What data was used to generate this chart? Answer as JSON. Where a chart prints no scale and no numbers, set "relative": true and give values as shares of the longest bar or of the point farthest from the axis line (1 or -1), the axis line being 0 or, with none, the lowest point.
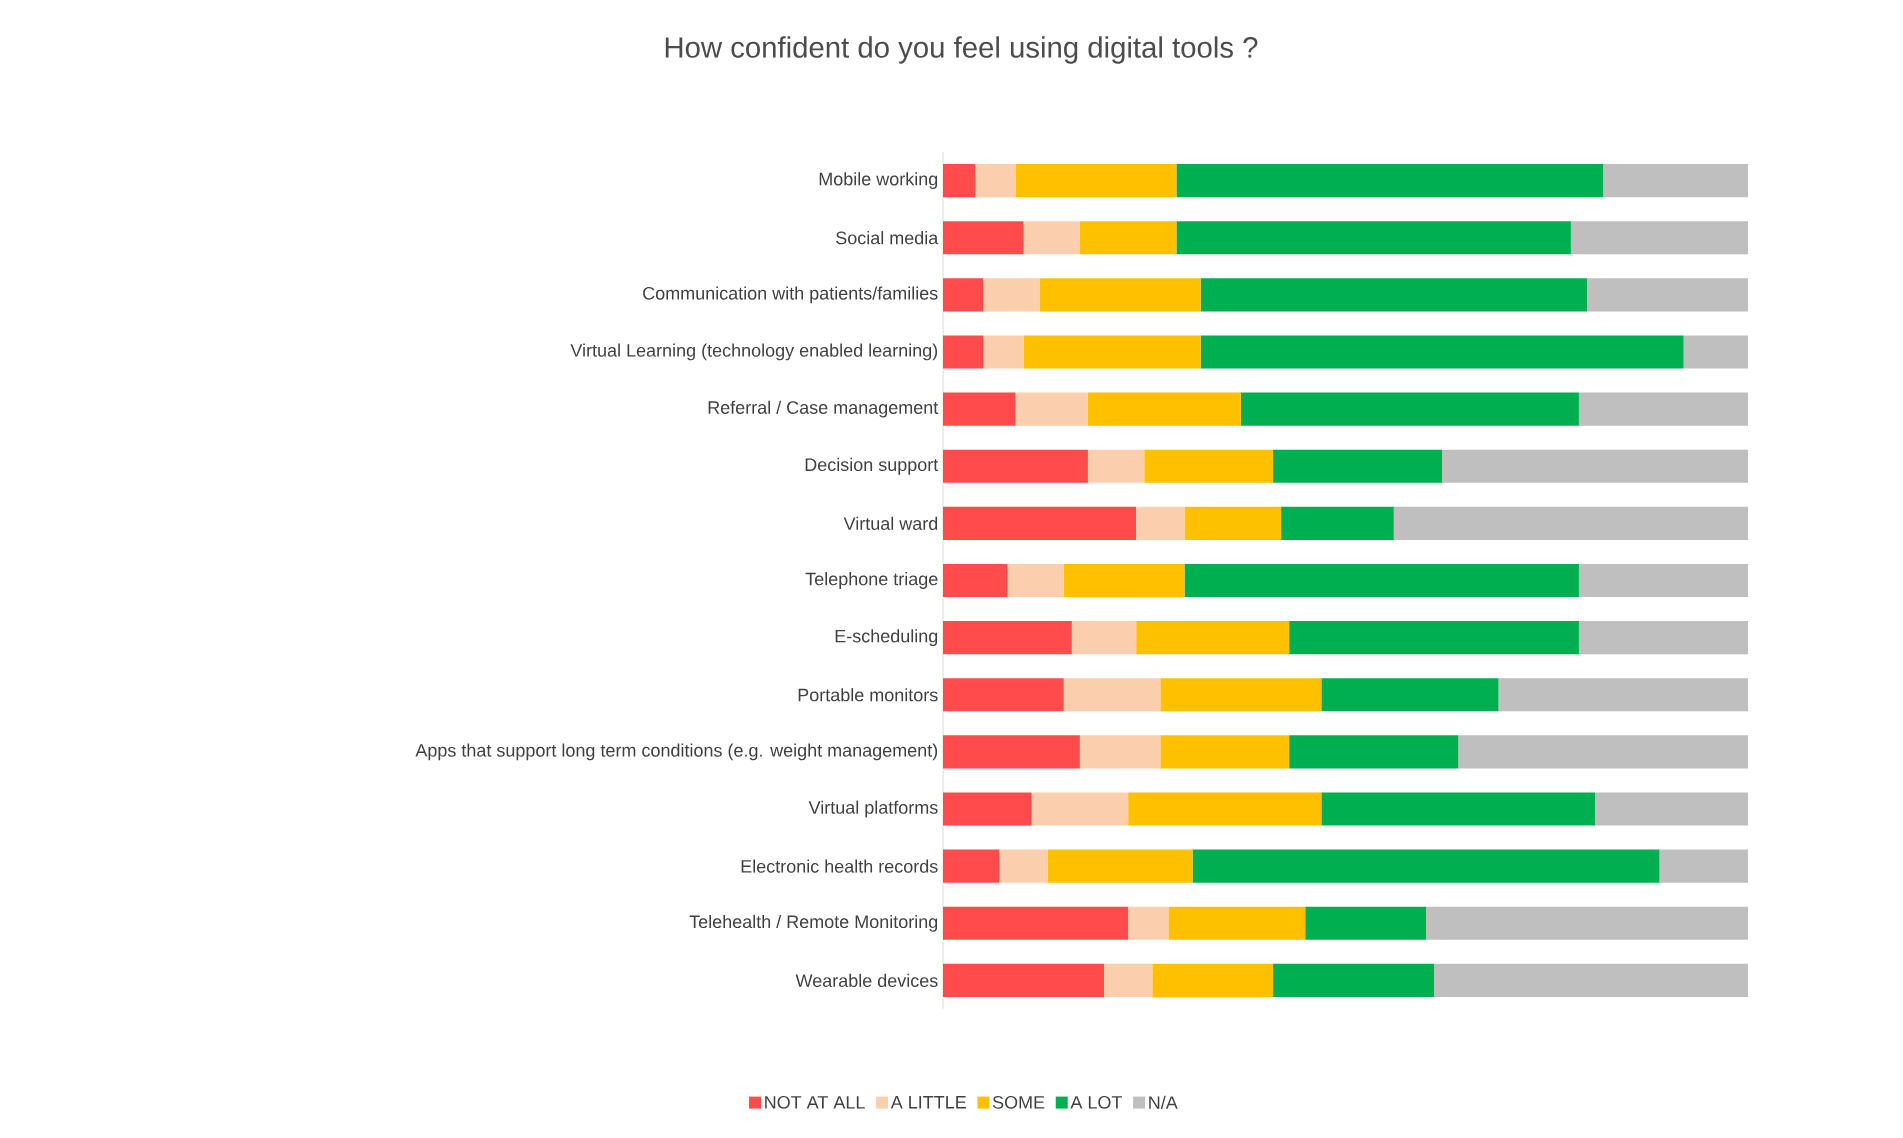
{
  "chart_data": {
    "type": "bar",
    "orientation": "horizontal",
    "stacked": true,
    "relative": true,
    "title": "How confident do you feel using digital tools ?",
    "legend": "bottom",
    "categories": [
      "Mobile working",
      "Social media",
      "Communication with patients/families",
      "Virtual Learning (technology enabled learning)",
      "Referral / Case management",
      "Decision support",
      "Virtual ward",
      "Telephone triage",
      "E-scheduling",
      "Portable monitors",
      "Apps that support long term conditions (e.g. weight management)",
      "Virtual platforms",
      "Electronic health records",
      "Telehealth / Remote Monitoring",
      "Wearable devices"
    ],
    "series": [
      {
        "name": "NOT AT ALL",
        "color": "#ff4b4b",
        "values": [
          0.04,
          0.1,
          0.05,
          0.05,
          0.09,
          0.18,
          0.24,
          0.08,
          0.16,
          0.15,
          0.17,
          0.11,
          0.07,
          0.23,
          0.2
        ]
      },
      {
        "name": "A LITTLE",
        "color": "#fbcfae",
        "values": [
          0.05,
          0.07,
          0.07,
          0.05,
          0.09,
          0.07,
          0.06,
          0.07,
          0.08,
          0.12,
          0.1,
          0.12,
          0.06,
          0.05,
          0.06
        ]
      },
      {
        "name": "SOME",
        "color": "#ffc000",
        "values": [
          0.2,
          0.12,
          0.2,
          0.22,
          0.19,
          0.16,
          0.12,
          0.15,
          0.19,
          0.2,
          0.16,
          0.24,
          0.18,
          0.17,
          0.15
        ]
      },
      {
        "name": "A LOT",
        "color": "#00b050",
        "values": [
          0.53,
          0.49,
          0.48,
          0.6,
          0.42,
          0.21,
          0.14,
          0.49,
          0.36,
          0.22,
          0.21,
          0.34,
          0.58,
          0.15,
          0.2
        ]
      },
      {
        "name": "N/A",
        "color": "#bfbfbf",
        "values": [
          0.18,
          0.22,
          0.2,
          0.08,
          0.21,
          0.38,
          0.44,
          0.21,
          0.21,
          0.31,
          0.36,
          0.19,
          0.11,
          0.4,
          0.39
        ]
      }
    ]
  }
}
